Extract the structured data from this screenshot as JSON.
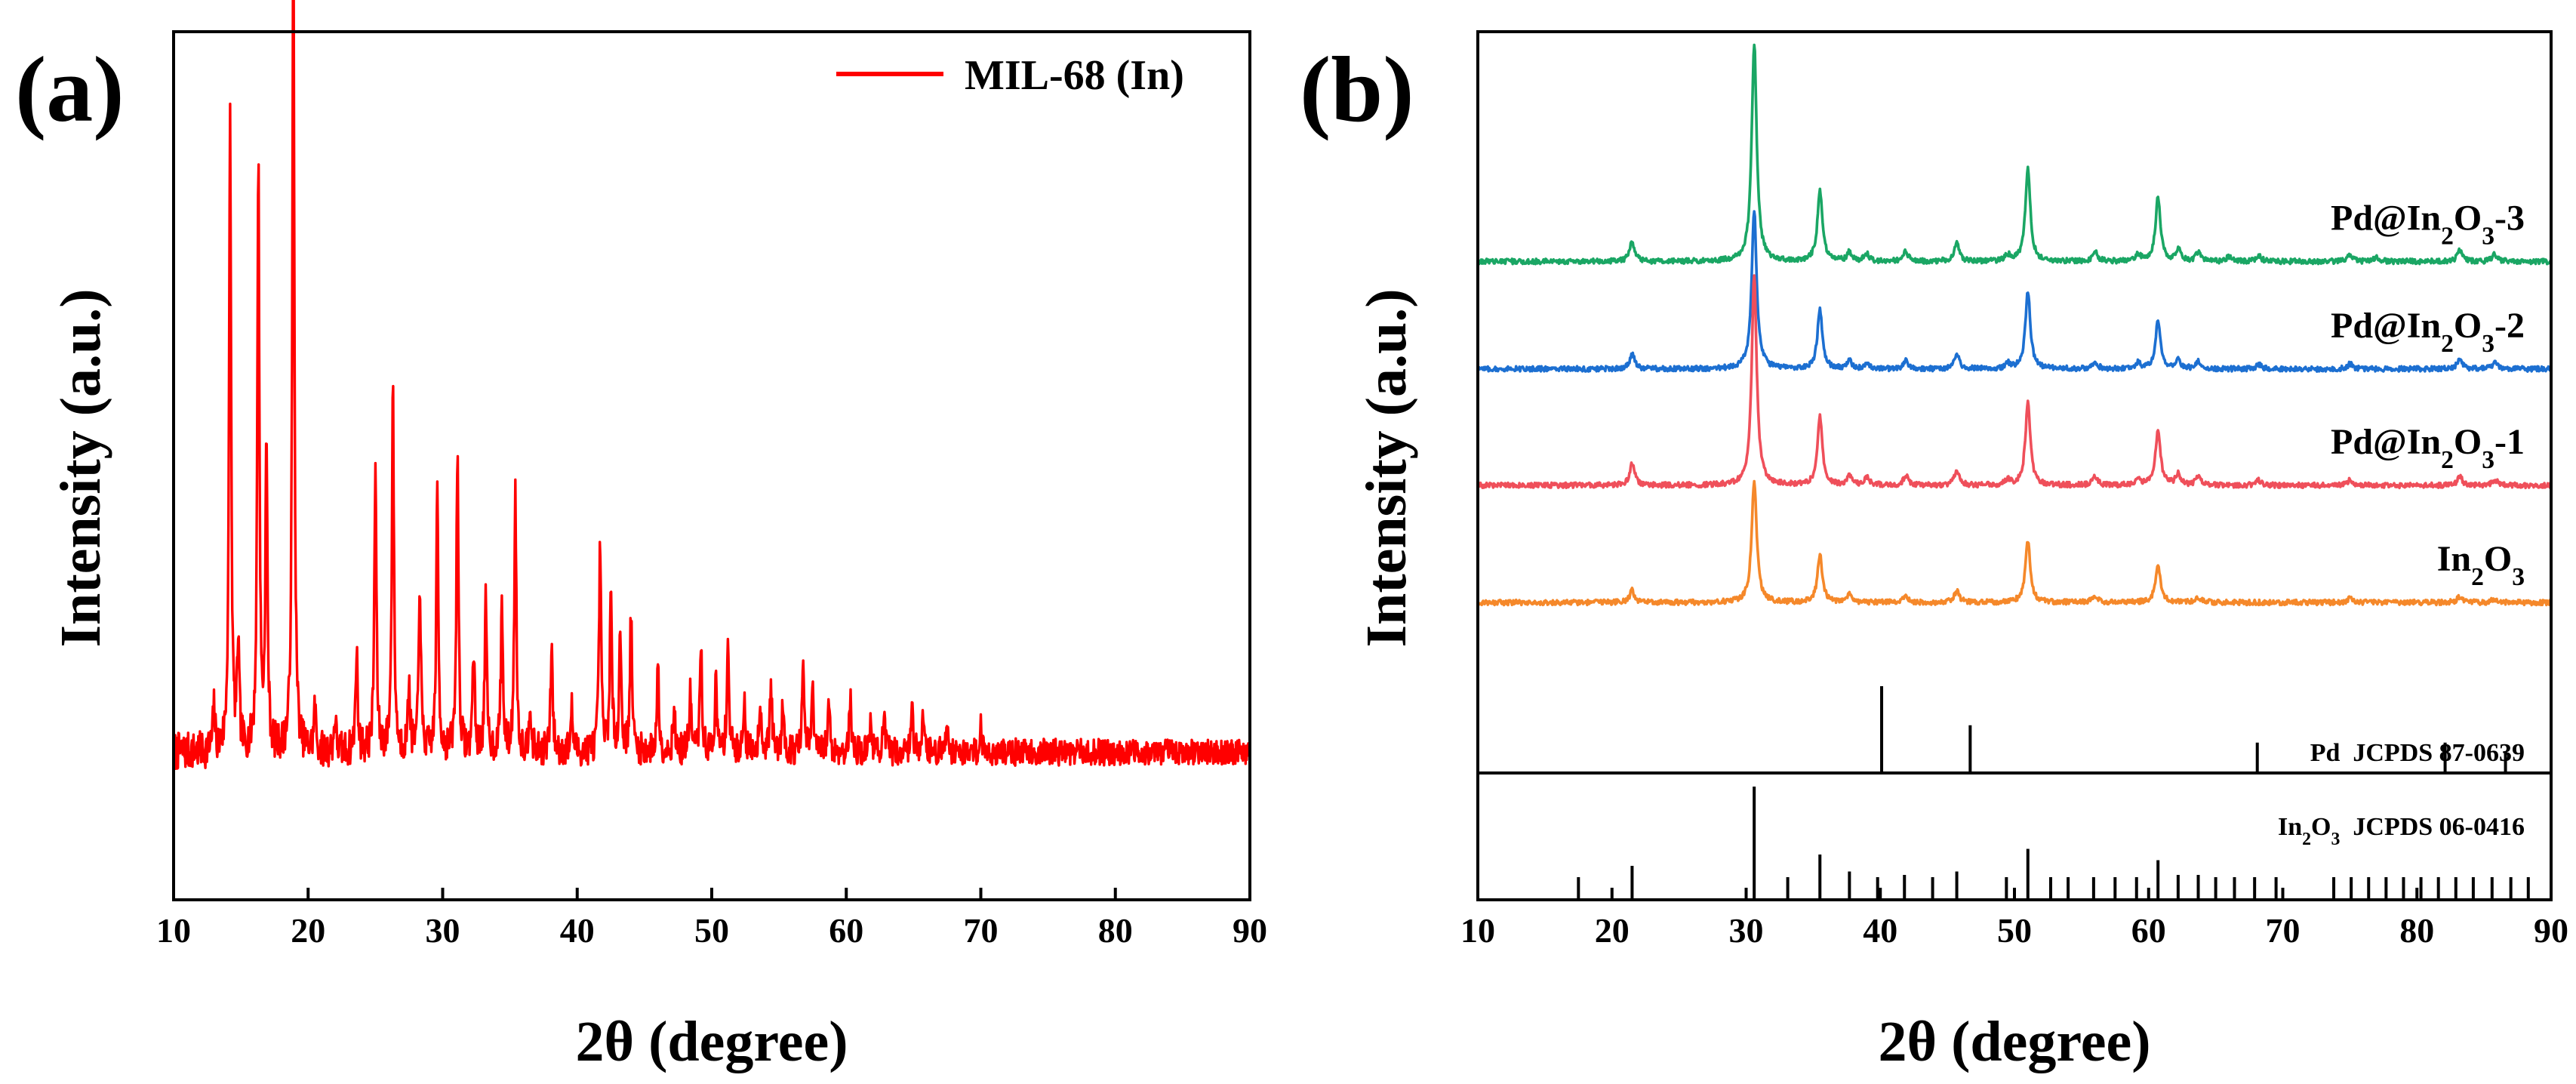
{
  "chart_data": [
    {
      "panel": "(a)",
      "type": "line",
      "xlabel": "2θ (degree)",
      "ylabel": "Intensity (a.u.)",
      "xlim": [
        10,
        90
      ],
      "ylim": [
        0,
        100
      ],
      "xticks": [
        10,
        20,
        30,
        40,
        50,
        60,
        70,
        80,
        90
      ],
      "yticks_labeled": false,
      "grid": false,
      "legend": {
        "placement": "top-right",
        "entries": [
          "MIL-68 (In)"
        ]
      },
      "colors": {
        "MIL-68 (In)": "#ff0000"
      },
      "series": [
        {
          "name": "MIL-68 (In)",
          "baseline": 17,
          "noise": 2.2,
          "noise_decay_end": 1.4,
          "peaks": [
            [
              13.0,
              5
            ],
            [
              14.2,
              73
            ],
            [
              14.8,
              12
            ],
            [
              16.3,
              68
            ],
            [
              16.9,
              35
            ],
            [
              18.9,
              97
            ],
            [
              20.5,
              5
            ],
            [
              22.0,
              4
            ],
            [
              23.6,
              12
            ],
            [
              25.0,
              33
            ],
            [
              26.3,
              43
            ],
            [
              27.5,
              8
            ],
            [
              28.3,
              20
            ],
            [
              29.6,
              30
            ],
            [
              31.1,
              35
            ],
            [
              32.3,
              12
            ],
            [
              33.2,
              17
            ],
            [
              34.4,
              17
            ],
            [
              35.4,
              30
            ],
            [
              36.5,
              6
            ],
            [
              38.1,
              12
            ],
            [
              39.6,
              5
            ],
            [
              41.7,
              24
            ],
            [
              42.5,
              18
            ],
            [
              43.2,
              14
            ],
            [
              44.0,
              16
            ],
            [
              46.0,
              10
            ],
            [
              47.2,
              5
            ],
            [
              48.4,
              7
            ],
            [
              49.2,
              12
            ],
            [
              50.3,
              8
            ],
            [
              51.2,
              13
            ],
            [
              52.4,
              6
            ],
            [
              53.6,
              6
            ],
            [
              54.4,
              8
            ],
            [
              55.3,
              6
            ],
            [
              56.8,
              10
            ],
            [
              57.5,
              7
            ],
            [
              58.7,
              6
            ],
            [
              60.3,
              6
            ],
            [
              61.8,
              4
            ],
            [
              62.8,
              4
            ],
            [
              64.9,
              5
            ],
            [
              65.7,
              5
            ],
            [
              67.5,
              4
            ],
            [
              70.0,
              3
            ]
          ]
        }
      ]
    },
    {
      "panel": "(b)",
      "type": "line",
      "xlabel": "2θ (degree)",
      "ylabel": "Intensity (a.u.)",
      "xlim": [
        10,
        90
      ],
      "xticks": [
        10,
        20,
        30,
        40,
        50,
        60,
        70,
        80,
        90
      ],
      "yticks_labeled": false,
      "grid": false,
      "stacked_offset": true,
      "colors": {
        "Pd@In2O3-3": "#1aa664",
        "Pd@In2O3-2": "#1c6fd1",
        "Pd@In2O3-1": "#ef4f5a",
        "In2O3": "#f5882a"
      },
      "series": [
        {
          "name": "Pd@In2O3-3",
          "baseline": 0.31,
          "noise": 0.0035,
          "peaks": [
            [
              21.5,
              0.027
            ],
            [
              30.6,
              0.295
            ],
            [
              35.5,
              0.095
            ],
            [
              37.7,
              0.012
            ],
            [
              39.0,
              0.01
            ],
            [
              41.9,
              0.013
            ],
            [
              45.7,
              0.025
            ],
            [
              49.5,
              0.008
            ],
            [
              51.0,
              0.125
            ],
            [
              56.0,
              0.013
            ],
            [
              59.2,
              0.01
            ],
            [
              60.7,
              0.086
            ],
            [
              62.2,
              0.016
            ],
            [
              63.7,
              0.012
            ],
            [
              66.0,
              0.006
            ],
            [
              68.2,
              0.008
            ],
            [
              75.0,
              0.008
            ],
            [
              77.0,
              0.006
            ],
            [
              83.2,
              0.016
            ],
            [
              85.8,
              0.01
            ]
          ]
        },
        {
          "name": "Pd@In2O3-2",
          "baseline": 0.455,
          "noise": 0.0035,
          "peaks": [
            [
              21.5,
              0.02
            ],
            [
              30.6,
              0.215
            ],
            [
              35.5,
              0.08
            ],
            [
              37.7,
              0.01
            ],
            [
              39.0,
              0.007
            ],
            [
              41.9,
              0.011
            ],
            [
              45.7,
              0.02
            ],
            [
              49.5,
              0.007
            ],
            [
              51.0,
              0.104
            ],
            [
              56.0,
              0.01
            ],
            [
              59.2,
              0.008
            ],
            [
              60.7,
              0.065
            ],
            [
              62.2,
              0.012
            ],
            [
              63.7,
              0.01
            ],
            [
              68.2,
              0.006
            ],
            [
              75.0,
              0.007
            ],
            [
              83.2,
              0.014
            ],
            [
              85.8,
              0.009
            ]
          ]
        },
        {
          "name": "Pd@In2O3-1",
          "baseline": 0.612,
          "noise": 0.0035,
          "peaks": [
            [
              21.5,
              0.03
            ],
            [
              30.6,
              0.285
            ],
            [
              35.5,
              0.093
            ],
            [
              37.7,
              0.012
            ],
            [
              39.0,
              0.011
            ],
            [
              41.9,
              0.013
            ],
            [
              45.7,
              0.021
            ],
            [
              49.5,
              0.007
            ],
            [
              51.0,
              0.112
            ],
            [
              56.0,
              0.012
            ],
            [
              59.2,
              0.009
            ],
            [
              60.7,
              0.075
            ],
            [
              62.2,
              0.015
            ],
            [
              63.7,
              0.012
            ],
            [
              68.2,
              0.007
            ],
            [
              75.0,
              0.007
            ],
            [
              83.2,
              0.012
            ],
            [
              85.8,
              0.008
            ]
          ]
        },
        {
          "name": "In2O3",
          "baseline": 0.77,
          "noise": 0.0035,
          "peaks": [
            [
              21.5,
              0.016
            ],
            [
              30.6,
              0.165
            ],
            [
              35.5,
              0.063
            ],
            [
              37.7,
              0.01
            ],
            [
              41.9,
              0.008
            ],
            [
              45.7,
              0.016
            ],
            [
              51.0,
              0.083
            ],
            [
              56.0,
              0.009
            ],
            [
              60.7,
              0.052
            ],
            [
              63.7,
              0.007
            ],
            [
              75.0,
              0.005
            ],
            [
              83.2,
              0.008
            ],
            [
              85.8,
              0.005
            ]
          ]
        }
      ],
      "series_labels": [
        {
          "series": "Pd@In2O3-3",
          "parts": [
            "Pd@In",
            "2",
            "O",
            "3",
            "-3"
          ]
        },
        {
          "series": "Pd@In2O3-2",
          "parts": [
            "Pd@In",
            "2",
            "O",
            "3",
            "-2"
          ]
        },
        {
          "series": "Pd@In2O3-1",
          "parts": [
            "Pd@In",
            "2",
            "O",
            "3",
            "-1"
          ]
        },
        {
          "series": "In2O3",
          "parts": [
            "In",
            "2",
            "O",
            "3",
            ""
          ]
        }
      ],
      "references": [
        {
          "label": "Pd  JCPDS 87-0639",
          "lines": [
            [
              40.1,
              1.0
            ],
            [
              46.7,
              0.55
            ],
            [
              68.1,
              0.35
            ],
            [
              82.1,
              0.35
            ],
            [
              86.6,
              0.25
            ]
          ]
        },
        {
          "label_parts": [
            "In",
            "2",
            "O",
            "3",
            "  JCPDS 06-0416"
          ],
          "lines": [
            [
              17.5,
              0.2
            ],
            [
              21.5,
              0.3
            ],
            [
              30.6,
              1.0
            ],
            [
              33.1,
              0.2
            ],
            [
              35.5,
              0.4
            ],
            [
              37.7,
              0.25
            ],
            [
              39.8,
              0.2
            ],
            [
              41.8,
              0.22
            ],
            [
              43.9,
              0.2
            ],
            [
              45.7,
              0.25
            ],
            [
              49.4,
              0.2
            ],
            [
              51.0,
              0.45
            ],
            [
              52.7,
              0.2
            ],
            [
              54.0,
              0.2
            ],
            [
              55.9,
              0.2
            ],
            [
              57.5,
              0.2
            ],
            [
              59.1,
              0.2
            ],
            [
              60.7,
              0.35
            ],
            [
              62.2,
              0.22
            ],
            [
              63.7,
              0.22
            ],
            [
              65.0,
              0.2
            ],
            [
              66.4,
              0.2
            ],
            [
              67.9,
              0.2
            ],
            [
              69.5,
              0.2
            ],
            [
              73.8,
              0.2
            ],
            [
              75.1,
              0.2
            ],
            [
              76.4,
              0.2
            ],
            [
              77.7,
              0.2
            ],
            [
              79.0,
              0.2
            ],
            [
              80.3,
              0.2
            ],
            [
              81.6,
              0.2
            ],
            [
              82.9,
              0.2
            ],
            [
              84.2,
              0.2
            ],
            [
              85.6,
              0.2
            ],
            [
              87.0,
              0.2
            ],
            [
              88.3,
              0.2
            ]
          ]
        }
      ]
    }
  ]
}
